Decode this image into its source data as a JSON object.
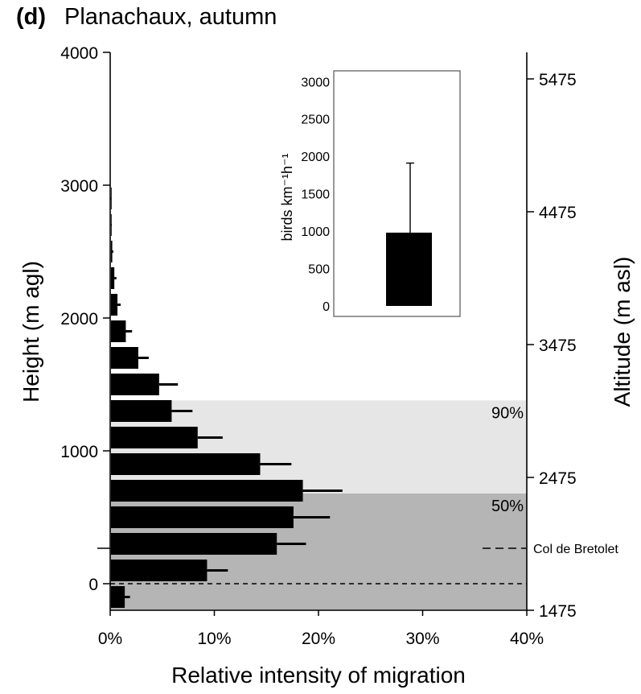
{
  "chart_data": {
    "type": "bar",
    "orientation": "horizontal",
    "panel_label": "(d)",
    "title": "Planachaux, autumn",
    "xlabel": "Relative intensity of migration",
    "ylabel": "Height (m agl)",
    "y2label": "Altitude (m asl)",
    "xlim": [
      0,
      40
    ],
    "ylim": [
      -200,
      4000
    ],
    "y2lim": [
      1475,
      5675
    ],
    "x_ticks": [
      "0%",
      "10%",
      "20%",
      "30%",
      "40%"
    ],
    "x_tick_values": [
      0,
      10,
      20,
      30,
      40
    ],
    "y_ticks": [
      "0",
      "1000",
      "2000",
      "3000",
      "4000"
    ],
    "y_tick_values": [
      0,
      1000,
      2000,
      3000,
      4000
    ],
    "y2_ticks": [
      "1475",
      "2475",
      "3475",
      "4475",
      "5475"
    ],
    "y2_tick_values": [
      1475,
      2475,
      3475,
      4475,
      5475
    ],
    "bars": [
      {
        "height": -100,
        "value": 1.4,
        "error": 0.5
      },
      {
        "height": 100,
        "value": 9.3,
        "error": 2.0
      },
      {
        "height": 300,
        "value": 16.0,
        "error": 2.8
      },
      {
        "height": 500,
        "value": 17.6,
        "error": 3.5
      },
      {
        "height": 700,
        "value": 18.5,
        "error": 3.8
      },
      {
        "height": 900,
        "value": 14.4,
        "error": 3.0
      },
      {
        "height": 1100,
        "value": 8.4,
        "error": 2.4
      },
      {
        "height": 1300,
        "value": 5.9,
        "error": 2.0
      },
      {
        "height": 1500,
        "value": 4.7,
        "error": 1.8
      },
      {
        "height": 1700,
        "value": 2.7,
        "error": 1.0
      },
      {
        "height": 1900,
        "value": 1.5,
        "error": 0.6
      },
      {
        "height": 2100,
        "value": 0.7,
        "error": 0.3
      },
      {
        "height": 2300,
        "value": 0.4,
        "error": 0.2
      },
      {
        "height": 2500,
        "value": 0.2,
        "error": 0.1
      },
      {
        "height": 2700,
        "value": 0.1,
        "error": 0.05
      },
      {
        "height": 2900,
        "value": 0.05,
        "error": 0.03
      }
    ],
    "bands": [
      {
        "label": "50%",
        "from": -200,
        "to": 680,
        "color": "#b5b5b5"
      },
      {
        "label": "90%",
        "from": 680,
        "to": 1380,
        "color": "#e6e6e6"
      }
    ],
    "reference_lines": [
      {
        "label": "Col de Bretolet",
        "height": 0,
        "style": "dashed"
      }
    ],
    "inset": {
      "type": "bar",
      "ylabel": "birds km⁻¹h⁻¹",
      "ylim": [
        0,
        3100
      ],
      "y_ticks": [
        "0",
        "500",
        "1000",
        "1500",
        "2000",
        "2500",
        "3000"
      ],
      "y_tick_values": [
        0,
        500,
        1000,
        1500,
        2000,
        2500,
        3000
      ],
      "value": 980,
      "error_upper": 1910
    },
    "colors": {
      "bar": "#000000",
      "band50": "#b5b5b5",
      "band90": "#e6e6e6"
    }
  }
}
